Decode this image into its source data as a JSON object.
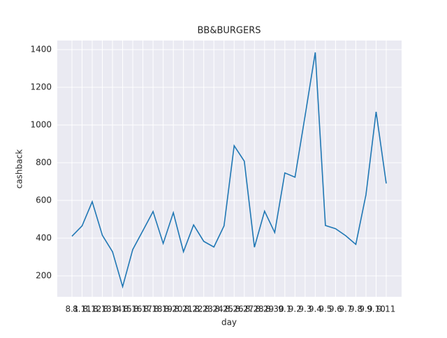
{
  "chart_data": {
    "type": "line",
    "title": "BB&BURGERS",
    "xlabel": "day",
    "ylabel": "cashback",
    "categories": [
      "8.1",
      "8.11",
      "8.12",
      "8.13",
      "8.14",
      "8.15",
      "8.16",
      "8.17",
      "8.18",
      "8.19",
      "8.20",
      "8.21",
      "8.22",
      "8.23",
      "8.24",
      "8.25",
      "8.26",
      "8.27",
      "8.28",
      "8.29",
      "8.30",
      "9.1",
      "9.2",
      "9.3",
      "9.4",
      "9.5",
      "9.6",
      "9.7",
      "9.8",
      "9.9",
      "9.10",
      "9.11"
    ],
    "series": [
      {
        "name": "cashback",
        "color": "#1f77b4",
        "values": [
          410,
          465,
          593,
          415,
          328,
          143,
          340,
          440,
          541,
          372,
          535,
          328,
          470,
          383,
          353,
          465,
          890,
          808,
          352,
          543,
          430,
          746,
          723,
          1050,
          1385,
          467,
          450,
          413,
          367,
          630,
          1070,
          690
        ]
      }
    ],
    "ylim": [
      89,
      1448
    ],
    "yticks": [
      200,
      400,
      600,
      800,
      1000,
      1200,
      1400
    ],
    "grid": true
  }
}
